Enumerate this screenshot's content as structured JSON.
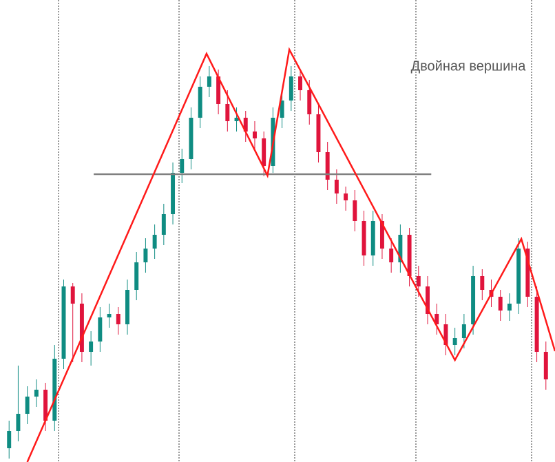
{
  "chart_data": {
    "type": "candlestick",
    "annotation": "Двойная вершина",
    "up_color": "#0f8c82",
    "down_color": "#e0143c",
    "xlim": [
      -1,
      60
    ],
    "ylim": [
      0,
      671
    ],
    "x": [
      0,
      1,
      2,
      3,
      4,
      5,
      6,
      7,
      8,
      9,
      10,
      11,
      12,
      13,
      14,
      15,
      16,
      17,
      18,
      19,
      20,
      21,
      22,
      23,
      24,
      25,
      26,
      27,
      28,
      29,
      30,
      31,
      32,
      33,
      34,
      35,
      36,
      37,
      38,
      39,
      40,
      41,
      42,
      43,
      44,
      45,
      46,
      47,
      48,
      49,
      50,
      51,
      52,
      53,
      54,
      55,
      56,
      57,
      58,
      59
    ],
    "ohlc": [
      [
        20,
        60,
        5,
        45
      ],
      [
        45,
        140,
        30,
        70
      ],
      [
        70,
        110,
        55,
        95
      ],
      [
        95,
        120,
        80,
        105
      ],
      [
        105,
        115,
        45,
        60
      ],
      [
        60,
        170,
        45,
        150
      ],
      [
        150,
        265,
        135,
        255
      ],
      [
        255,
        260,
        145,
        230
      ],
      [
        230,
        245,
        145,
        160
      ],
      [
        160,
        190,
        140,
        175
      ],
      [
        175,
        225,
        160,
        210
      ],
      [
        210,
        230,
        195,
        215
      ],
      [
        215,
        225,
        185,
        200
      ],
      [
        200,
        265,
        185,
        250
      ],
      [
        250,
        305,
        235,
        290
      ],
      [
        290,
        325,
        275,
        310
      ],
      [
        310,
        345,
        295,
        330
      ],
      [
        330,
        375,
        315,
        360
      ],
      [
        360,
        435,
        345,
        420
      ],
      [
        420,
        455,
        405,
        440
      ],
      [
        440,
        515,
        425,
        500
      ],
      [
        500,
        560,
        485,
        545
      ],
      [
        545,
        575,
        530,
        560
      ],
      [
        560,
        570,
        505,
        520
      ],
      [
        520,
        540,
        480,
        495
      ],
      [
        495,
        515,
        480,
        500
      ],
      [
        500,
        510,
        465,
        480
      ],
      [
        480,
        495,
        455,
        470
      ],
      [
        470,
        480,
        415,
        430
      ],
      [
        430,
        515,
        420,
        500
      ],
      [
        500,
        540,
        485,
        525
      ],
      [
        525,
        575,
        510,
        560
      ],
      [
        560,
        570,
        525,
        540
      ],
      [
        540,
        555,
        490,
        505
      ],
      [
        505,
        520,
        435,
        450
      ],
      [
        450,
        465,
        395,
        410
      ],
      [
        410,
        425,
        375,
        390
      ],
      [
        390,
        400,
        365,
        380
      ],
      [
        380,
        395,
        335,
        350
      ],
      [
        350,
        365,
        285,
        300
      ],
      [
        300,
        365,
        285,
        350
      ],
      [
        350,
        360,
        295,
        310
      ],
      [
        310,
        325,
        275,
        290
      ],
      [
        290,
        345,
        275,
        330
      ],
      [
        330,
        340,
        255,
        270
      ],
      [
        270,
        285,
        240,
        255
      ],
      [
        255,
        270,
        200,
        215
      ],
      [
        215,
        230,
        185,
        200
      ],
      [
        200,
        215,
        155,
        170
      ],
      [
        170,
        195,
        155,
        180
      ],
      [
        180,
        215,
        165,
        200
      ],
      [
        200,
        285,
        185,
        270
      ],
      [
        270,
        280,
        235,
        250
      ],
      [
        250,
        265,
        225,
        240
      ],
      [
        240,
        250,
        205,
        220
      ],
      [
        220,
        245,
        205,
        230
      ],
      [
        230,
        325,
        215,
        310
      ],
      [
        310,
        320,
        225,
        240
      ],
      [
        240,
        255,
        145,
        160
      ],
      [
        160,
        175,
        105,
        120
      ]
    ],
    "zigzag": {
      "color": "#ff1a1a",
      "x": [
        2.0,
        21.7,
        28.4,
        30.8,
        49,
        56.3,
        60
      ],
      "y": [
        0,
        593,
        416,
        599,
        148,
        324,
        161
      ]
    },
    "level": {
      "color": "#808080",
      "value": 418,
      "x": [
        9.3,
        46.4
      ]
    }
  }
}
